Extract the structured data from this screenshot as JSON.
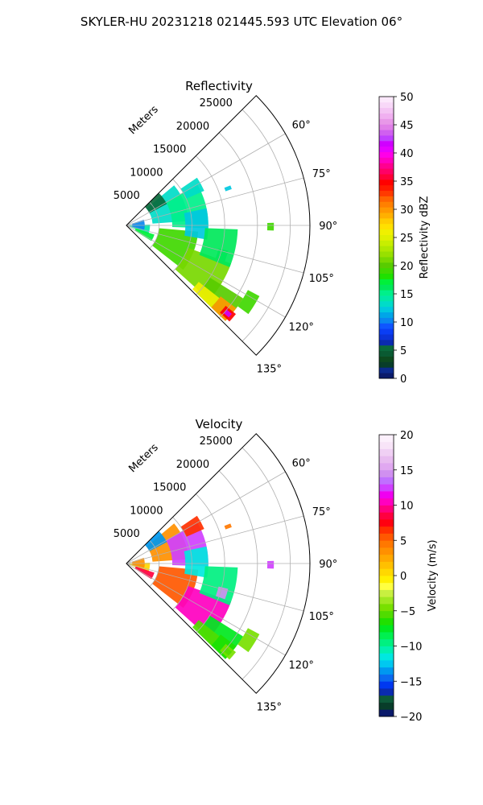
{
  "figure": {
    "title": "SKYLER-HU  20231218  021445.593 UTC Elevation 06°"
  },
  "chart_data": [
    {
      "type": "heatmap",
      "subtype": "polar-sector",
      "title": "Reflectivity",
      "radial_label": "Meters",
      "radial_ticks": [
        5000,
        10000,
        15000,
        20000,
        25000
      ],
      "radial_tick_labels": [
        "5000",
        "10000",
        "15000",
        "20000",
        "25000"
      ],
      "rmax": 28000,
      "azimuth_range": [
        45,
        135
      ],
      "azimuth_ticks": [
        60,
        75,
        90,
        105,
        120,
        135
      ],
      "azimuth_tick_labels": [
        "60°",
        "75°",
        "90°",
        "105°",
        "120°",
        "135°"
      ],
      "grid": true,
      "colorbar": {
        "label": "Reflectivity dBZ",
        "range": [
          0,
          50
        ],
        "ticks": [
          0,
          5,
          10,
          15,
          20,
          25,
          30,
          35,
          40,
          45,
          50
        ],
        "tick_labels": [
          "0",
          "5",
          "10",
          "15",
          "20",
          "25",
          "30",
          "35",
          "40",
          "45",
          "50"
        ],
        "colors": [
          "#0a1a6b",
          "#0b2a8e",
          "#083d2a",
          "#0d4a1e",
          "#0a5a32",
          "#0a6a3c",
          "#0a2bb0",
          "#0b33d8",
          "#0a3ef5",
          "#0f55ff",
          "#0a86f0",
          "#00a6e8",
          "#00c8e0",
          "#00dcc8",
          "#00e8a8",
          "#00f08a",
          "#00e85a",
          "#00f03a",
          "#20e000",
          "#40d800",
          "#58cc00",
          "#78d800",
          "#98e000",
          "#b0e800",
          "#c8ee00",
          "#e0f000",
          "#f0f000",
          "#ffe000",
          "#ffcc00",
          "#ffb000",
          "#ff9800",
          "#ff8000",
          "#ff6400",
          "#ff3a00",
          "#ff1a00",
          "#ff0000",
          "#ff0038",
          "#ff0066",
          "#ff0090",
          "#ff00c0",
          "#ff00e8",
          "#e600ff",
          "#d000ff",
          "#c040ff",
          "#d060f0",
          "#e080e8",
          "#e898e8",
          "#f0b0f0",
          "#f4c4f4",
          "#f8d8f8",
          "#fce8fc"
        ]
      },
      "echo_regions": [
        {
          "level": 14,
          "r": [
            500,
            3600
          ],
          "az": [
            88,
            112
          ]
        },
        {
          "level": 10,
          "r": [
            900,
            2800
          ],
          "az": [
            72,
            104
          ]
        },
        {
          "level": 17,
          "r": [
            1500,
            4500
          ],
          "az": [
            108,
            122
          ]
        },
        {
          "level": 13,
          "r": [
            4000,
            9500
          ],
          "az": [
            50,
            86
          ]
        },
        {
          "level": 5,
          "r": [
            4000,
            7000
          ],
          "az": [
            45,
            62
          ]
        },
        {
          "level": 15,
          "r": [
            7000,
            12500
          ],
          "az": [
            60,
            92
          ]
        },
        {
          "level": 19,
          "r": [
            5000,
            11000
          ],
          "az": [
            95,
            128
          ]
        },
        {
          "level": 12,
          "r": [
            9000,
            12500
          ],
          "az": [
            78,
            100
          ]
        },
        {
          "level": 21,
          "r": [
            10000,
            17000
          ],
          "az": [
            110,
            132
          ]
        },
        {
          "level": 16,
          "r": [
            12000,
            17000
          ],
          "az": [
            92,
            112
          ]
        },
        {
          "level": 20,
          "r": [
            15000,
            21000
          ],
          "az": [
            122,
            134
          ]
        },
        {
          "level": 26,
          "r": [
            14000,
            18000
          ],
          "az": [
            128,
            134
          ]
        },
        {
          "level": 30,
          "r": [
            18000,
            21000
          ],
          "az": [
            127,
            134
          ]
        },
        {
          "level": 35,
          "r": [
            19500,
            21500
          ],
          "az": [
            129,
            133
          ]
        },
        {
          "level": 42,
          "r": [
            20000,
            21000
          ],
          "az": [
            130,
            132
          ]
        },
        {
          "level": 19,
          "r": [
            21000,
            23000
          ],
          "az": [
            118,
            126
          ]
        },
        {
          "level": 16,
          "r": [
            14500,
            16000
          ],
          "az": [
            104,
            110
          ]
        },
        {
          "level": 13,
          "r": [
            10000,
            13000
          ],
          "az": [
            56,
            66
          ]
        },
        {
          "level": 19,
          "r": [
            21500,
            22500
          ],
          "az": [
            89,
            92
          ]
        },
        {
          "level": 12,
          "r": [
            16000,
            17000
          ],
          "az": [
            69,
            71
          ]
        }
      ]
    },
    {
      "type": "heatmap",
      "subtype": "polar-sector",
      "title": "Velocity",
      "radial_label": "Meters",
      "radial_ticks": [
        5000,
        10000,
        15000,
        20000,
        25000
      ],
      "radial_tick_labels": [
        "5000",
        "10000",
        "15000",
        "20000",
        "25000"
      ],
      "rmax": 28000,
      "azimuth_range": [
        45,
        135
      ],
      "azimuth_ticks": [
        60,
        75,
        90,
        105,
        120,
        135
      ],
      "azimuth_tick_labels": [
        "60°",
        "75°",
        "90°",
        "105°",
        "120°",
        "135°"
      ],
      "grid": true,
      "colorbar": {
        "label": "Velocity (m/s)",
        "range": [
          -20,
          20
        ],
        "ticks": [
          -20,
          -15,
          -10,
          -5,
          0,
          5,
          10,
          15,
          20
        ],
        "tick_labels": [
          "−20",
          "−15",
          "−10",
          "−5",
          "0",
          "5",
          "10",
          "15",
          "20"
        ],
        "colors": [
          "#0a1a6b",
          "#083d2a",
          "#0d5a3a",
          "#0a2bb0",
          "#0038f0",
          "#0a6af0",
          "#0098f0",
          "#00c8f0",
          "#00e8e0",
          "#00f0b0",
          "#00f080",
          "#00f050",
          "#00e820",
          "#20e000",
          "#50dc00",
          "#78e000",
          "#a0e820",
          "#c8f040",
          "#ffff40",
          "#fff000",
          "#ffd800",
          "#ffc000",
          "#ffa800",
          "#ff9000",
          "#ff7800",
          "#ff5800",
          "#ff3000",
          "#ff0010",
          "#ff0040",
          "#ff0080",
          "#ff00c0",
          "#f000f0",
          "#d040ff",
          "#c070ff",
          "#d090f0",
          "#e0a8f0",
          "#e8bcf0",
          "#f0d0f4",
          "#f8e4f8",
          "#fcf0fc"
        ]
      },
      "echo_regions": [
        {
          "level": 0,
          "r": [
            500,
            3600
          ],
          "az": [
            88,
            112
          ]
        },
        {
          "level": 3,
          "r": [
            900,
            2800
          ],
          "az": [
            72,
            104
          ]
        },
        {
          "level": 8,
          "r": [
            1500,
            4500
          ],
          "az": [
            108,
            122
          ]
        },
        {
          "level": 3,
          "r": [
            4000,
            9500
          ],
          "az": [
            50,
            86
          ]
        },
        {
          "level": -14,
          "r": [
            4000,
            7000
          ],
          "az": [
            45,
            62
          ]
        },
        {
          "level": 12,
          "r": [
            7000,
            12500
          ],
          "az": [
            60,
            92
          ]
        },
        {
          "level": 5,
          "r": [
            5000,
            11000
          ],
          "az": [
            95,
            128
          ]
        },
        {
          "level": -12,
          "r": [
            9000,
            12500
          ],
          "az": [
            78,
            100
          ]
        },
        {
          "level": 10,
          "r": [
            10000,
            17000
          ],
          "az": [
            110,
            132
          ]
        },
        {
          "level": -10,
          "r": [
            12000,
            17000
          ],
          "az": [
            92,
            112
          ]
        },
        {
          "level": -8,
          "r": [
            15000,
            21000
          ],
          "az": [
            122,
            134
          ]
        },
        {
          "level": -6,
          "r": [
            14000,
            18000
          ],
          "az": [
            128,
            134
          ]
        },
        {
          "level": -7,
          "r": [
            18000,
            21000
          ],
          "az": [
            127,
            134
          ]
        },
        {
          "level": -5,
          "r": [
            19500,
            21500
          ],
          "az": [
            129,
            133
          ]
        },
        {
          "level": -6,
          "r": [
            20000,
            21000
          ],
          "az": [
            130,
            132
          ]
        },
        {
          "level": -5,
          "r": [
            21000,
            23000
          ],
          "az": [
            118,
            126
          ]
        },
        {
          "level": 14,
          "r": [
            14500,
            16000
          ],
          "az": [
            104,
            110
          ]
        },
        {
          "level": 6,
          "r": [
            10000,
            13000
          ],
          "az": [
            56,
            66
          ]
        },
        {
          "level": 12,
          "r": [
            21500,
            22500
          ],
          "az": [
            89,
            92
          ]
        },
        {
          "level": 4,
          "r": [
            16000,
            17000
          ],
          "az": [
            69,
            71
          ]
        }
      ]
    }
  ]
}
